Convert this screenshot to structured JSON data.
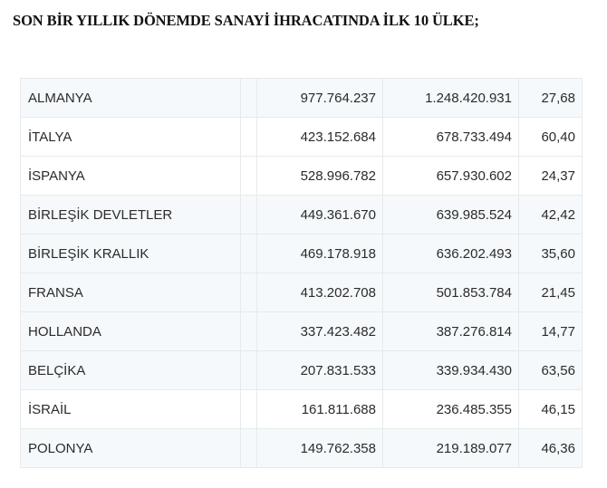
{
  "header": {
    "title": "SON BİR YILLIK DÖNEMDE SANAYİ İHRACATINDA İLK 10 ÜLKE;"
  },
  "table": {
    "rows": [
      {
        "country": "ALMANYA",
        "blank": "",
        "value_prev": "977.764.237",
        "value_curr": "1.248.420.931",
        "change_pct": "27,68",
        "tinted": true
      },
      {
        "country": "İTALYA",
        "blank": "",
        "value_prev": "423.152.684",
        "value_curr": "678.733.494",
        "change_pct": "60,40",
        "tinted": false
      },
      {
        "country": "İSPANYA",
        "blank": "",
        "value_prev": "528.996.782",
        "value_curr": "657.930.602",
        "change_pct": "24,37",
        "tinted": false
      },
      {
        "country": "BİRLEŞİK DEVLETLER",
        "blank": "",
        "value_prev": "449.361.670",
        "value_curr": "639.985.524",
        "change_pct": "42,42",
        "tinted": true
      },
      {
        "country": "BİRLEŞİK KRALLIK",
        "blank": "",
        "value_prev": "469.178.918",
        "value_curr": "636.202.493",
        "change_pct": "35,60",
        "tinted": true
      },
      {
        "country": "FRANSA",
        "blank": "",
        "value_prev": "413.202.708",
        "value_curr": "501.853.784",
        "change_pct": "21,45",
        "tinted": true
      },
      {
        "country": "HOLLANDA",
        "blank": "",
        "value_prev": "337.423.482",
        "value_curr": "387.276.814",
        "change_pct": "14,77",
        "tinted": true
      },
      {
        "country": "BELÇİKA",
        "blank": "",
        "value_prev": "207.831.533",
        "value_curr": "339.934.430",
        "change_pct": "63,56",
        "tinted": true
      },
      {
        "country": "İSRAİL",
        "blank": "",
        "value_prev": "161.811.688",
        "value_curr": "236.485.355",
        "change_pct": "46,15",
        "tinted": false
      },
      {
        "country": "POLONYA",
        "blank": "",
        "value_prev": "149.762.358",
        "value_curr": "219.189.077",
        "change_pct": "46,36",
        "tinted": true
      }
    ]
  },
  "colors": {
    "row_tint": "#f5f9fb",
    "row_plain": "#ffffff",
    "border": "#e6eaec",
    "text": "#2b2b2b",
    "title_text": "#111111"
  }
}
